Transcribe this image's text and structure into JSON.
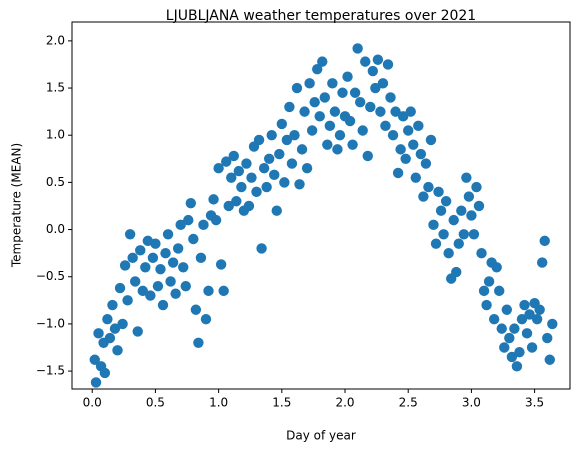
{
  "chart_data": {
    "type": "scatter",
    "title": "LJUBLJANA weather temperatures over 2021",
    "x_label": "Day of year",
    "y_label": "Temperature (MEAN)",
    "xlim": [
      -0.16,
      3.78
    ],
    "ylim": [
      -1.69,
      2.2
    ],
    "xticks": [
      {
        "value": 0,
        "label": "0.0"
      },
      {
        "value": 0.5,
        "label": "0.5"
      },
      {
        "value": 1,
        "label": "1.0"
      },
      {
        "value": 1.5,
        "label": "1.5"
      },
      {
        "value": 2,
        "label": "2.0"
      },
      {
        "value": 2.5,
        "label": "2.5"
      },
      {
        "value": 3,
        "label": "3.0"
      },
      {
        "value": 3.5,
        "label": "3.5"
      }
    ],
    "yticks": [
      {
        "value": -1.5,
        "label": "−1.5"
      },
      {
        "value": -1,
        "label": "−1.0"
      },
      {
        "value": -0.5,
        "label": "−0.5"
      },
      {
        "value": 0,
        "label": "0.0"
      },
      {
        "value": 0.5,
        "label": "0.5"
      },
      {
        "value": 1,
        "label": "1.0"
      },
      {
        "value": 1.5,
        "label": "1.5"
      },
      {
        "value": 2,
        "label": "2.0"
      }
    ],
    "grid": false,
    "color": "#1f77b4",
    "x": [
      0.02,
      0.03,
      0.05,
      0.07,
      0.09,
      0.1,
      0.12,
      0.14,
      0.16,
      0.18,
      0.2,
      0.22,
      0.24,
      0.26,
      0.28,
      0.3,
      0.32,
      0.34,
      0.36,
      0.38,
      0.4,
      0.42,
      0.44,
      0.46,
      0.48,
      0.5,
      0.52,
      0.54,
      0.56,
      0.58,
      0.6,
      0.62,
      0.64,
      0.66,
      0.68,
      0.7,
      0.72,
      0.74,
      0.76,
      0.78,
      0.8,
      0.82,
      0.84,
      0.86,
      0.88,
      0.9,
      0.92,
      0.94,
      0.96,
      0.98,
      1.0,
      1.02,
      1.04,
      1.06,
      1.08,
      1.1,
      1.12,
      1.14,
      1.16,
      1.18,
      1.2,
      1.22,
      1.24,
      1.26,
      1.28,
      1.3,
      1.32,
      1.34,
      1.36,
      1.38,
      1.4,
      1.42,
      1.44,
      1.46,
      1.48,
      1.5,
      1.52,
      1.54,
      1.56,
      1.58,
      1.6,
      1.62,
      1.64,
      1.66,
      1.68,
      1.7,
      1.72,
      1.74,
      1.76,
      1.78,
      1.8,
      1.82,
      1.84,
      1.86,
      1.88,
      1.9,
      1.92,
      1.94,
      1.96,
      1.98,
      2.0,
      2.02,
      2.04,
      2.06,
      2.08,
      2.1,
      2.12,
      2.14,
      2.16,
      2.18,
      2.2,
      2.22,
      2.24,
      2.26,
      2.28,
      2.3,
      2.32,
      2.34,
      2.36,
      2.38,
      2.4,
      2.42,
      2.44,
      2.46,
      2.48,
      2.5,
      2.52,
      2.54,
      2.56,
      2.58,
      2.6,
      2.62,
      2.64,
      2.66,
      2.68,
      2.7,
      2.72,
      2.74,
      2.76,
      2.78,
      2.8,
      2.82,
      2.84,
      2.86,
      2.88,
      2.9,
      2.92,
      2.94,
      2.96,
      2.98,
      3.0,
      3.02,
      3.04,
      3.06,
      3.08,
      3.1,
      3.12,
      3.14,
      3.16,
      3.18,
      3.2,
      3.22,
      3.24,
      3.26,
      3.28,
      3.3,
      3.32,
      3.34,
      3.36,
      3.38,
      3.4,
      3.42,
      3.44,
      3.46,
      3.48,
      3.5,
      3.52,
      3.54,
      3.56,
      3.58,
      3.6,
      3.62,
      3.64
    ],
    "values": [
      -1.38,
      -1.62,
      -1.1,
      -1.45,
      -1.2,
      -1.52,
      -0.95,
      -1.15,
      -0.8,
      -1.05,
      -1.28,
      -0.62,
      -1.0,
      -0.38,
      -0.75,
      -0.05,
      -0.3,
      -0.55,
      -1.08,
      -0.22,
      -0.65,
      -0.4,
      -0.12,
      -0.7,
      -0.3,
      -0.15,
      -0.6,
      -0.42,
      -0.8,
      -0.25,
      -0.05,
      -0.55,
      -0.35,
      -0.68,
      -0.2,
      0.05,
      -0.4,
      -0.6,
      0.1,
      0.28,
      -0.1,
      -0.85,
      -1.2,
      -0.3,
      0.05,
      -0.95,
      -0.65,
      0.15,
      0.32,
      0.1,
      0.65,
      -0.37,
      -0.65,
      0.72,
      0.25,
      0.55,
      0.78,
      0.3,
      0.62,
      0.45,
      0.2,
      0.7,
      0.25,
      0.55,
      0.88,
      0.4,
      0.95,
      -0.2,
      0.65,
      0.45,
      0.75,
      1.0,
      0.58,
      0.2,
      0.8,
      1.12,
      0.5,
      0.95,
      1.3,
      0.7,
      1.0,
      1.5,
      0.48,
      0.85,
      1.25,
      0.65,
      1.55,
      1.05,
      1.35,
      1.7,
      1.2,
      1.78,
      1.4,
      0.9,
      1.1,
      1.55,
      1.25,
      0.85,
      1.0,
      1.45,
      1.2,
      1.62,
      1.15,
      0.9,
      1.45,
      1.92,
      1.35,
      1.05,
      1.78,
      0.78,
      1.3,
      1.68,
      1.5,
      1.8,
      1.25,
      1.55,
      1.1,
      1.75,
      1.4,
      1.0,
      1.25,
      0.6,
      0.85,
      1.2,
      0.75,
      1.05,
      1.25,
      0.9,
      0.55,
      1.1,
      0.8,
      0.35,
      0.7,
      0.45,
      0.95,
      0.05,
      -0.15,
      0.4,
      0.2,
      -0.05,
      0.3,
      -0.25,
      -0.52,
      0.1,
      -0.45,
      -0.15,
      0.2,
      -0.05,
      0.55,
      0.35,
      0.15,
      -0.05,
      0.45,
      0.25,
      -0.25,
      -0.65,
      -0.8,
      -0.55,
      -0.35,
      -0.95,
      -0.4,
      -0.65,
      -1.05,
      -1.25,
      -0.85,
      -1.15,
      -1.35,
      -1.05,
      -1.45,
      -1.3,
      -0.95,
      -0.8,
      -1.1,
      -0.9,
      -1.25,
      -0.78,
      -0.95,
      -0.85,
      -0.35,
      -0.12,
      -1.15,
      -1.38,
      -1.0
    ]
  }
}
